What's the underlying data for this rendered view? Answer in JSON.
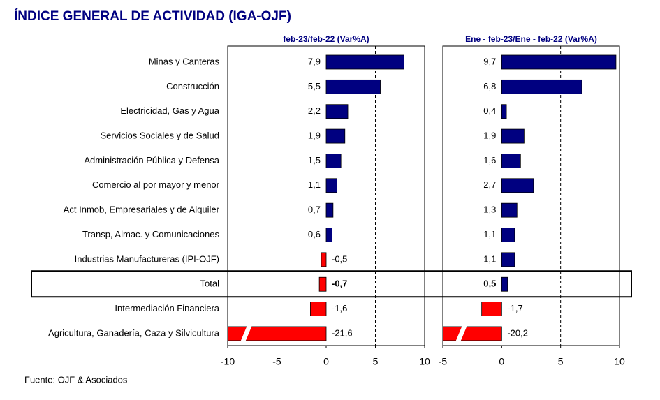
{
  "title": "ÍNDICE GENERAL DE ACTIVIDAD (IGA-OJF)",
  "source": "Fuente: OJF & Asociados",
  "categories": [
    "Minas y Canteras",
    "Construcción",
    "Electricidad, Gas y Agua",
    "Servicios Sociales y de Salud",
    "Administración Pública y Defensa",
    "Comercio al por mayor y menor",
    "Act Inmob, Empresariales y de Alquiler",
    "Transp, Almac. y Comunicaciones",
    "Industrias Manufactureras (IPI-OJF)",
    "Total",
    "Intermediación Financiera",
    "Agricultura, Ganadería, Caza y Silvicultura"
  ],
  "highlight": "Total",
  "chart_data": [
    {
      "type": "bar",
      "orientation": "horizontal",
      "title": "feb-23/feb-22  (Var%A)",
      "values": [
        7.9,
        5.5,
        2.2,
        1.9,
        1.5,
        1.1,
        0.7,
        0.6,
        -0.5,
        -0.7,
        -1.6,
        -21.6
      ],
      "value_labels": [
        "7,9",
        "5,5",
        "2,2",
        "1,9",
        "1,5",
        "1,1",
        "0,7",
        "0,6",
        "-0,5",
        "-0,7",
        "-1,6",
        "-21,6"
      ],
      "color": "#000080",
      "negative_color": "#ff0000",
      "xlim": [
        -10,
        10
      ],
      "xticks": [
        -10,
        -5,
        0,
        5,
        10
      ],
      "grid": true
    },
    {
      "type": "bar",
      "orientation": "horizontal",
      "title": "Ene - feb-23/Ene - feb-22  (Var%A)",
      "values": [
        9.7,
        6.8,
        0.4,
        1.9,
        1.6,
        2.7,
        1.3,
        1.1,
        1.1,
        0.5,
        -1.7,
        -20.2
      ],
      "value_labels": [
        "9,7",
        "6,8",
        "0,4",
        "1,9",
        "1,6",
        "2,7",
        "1,3",
        "1,1",
        "1,1",
        "0,5",
        "-1,7",
        "-20,2"
      ],
      "color": "#000080",
      "negative_color": "#ff0000",
      "xlim": [
        -5,
        10
      ],
      "xticks": [
        -5,
        0,
        5,
        10
      ],
      "grid": true
    }
  ]
}
